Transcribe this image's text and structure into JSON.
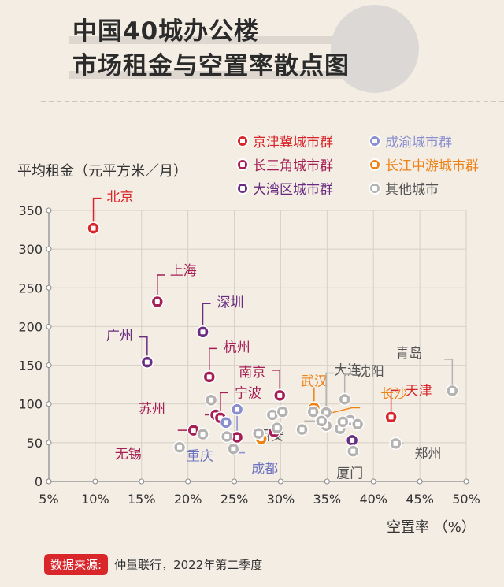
{
  "title": [
    "中国40城办公楼",
    "市场租金与空置率散点图"
  ],
  "source": {
    "tag": "数据来源:",
    "text": "仲量联行，2022年第二季度"
  },
  "chart_data": {
    "type": "scatter",
    "ylabel": "平均租金（元平方米／月）",
    "xlabel": "空置率 （%）",
    "xlim": [
      5,
      50
    ],
    "ylim": [
      0,
      350
    ],
    "x_ticks": [
      "5%",
      "10%",
      "15%",
      "20%",
      "25%",
      "30%",
      "35%",
      "40%",
      "45%",
      "50%"
    ],
    "y_ticks": [
      "0",
      "50",
      "100",
      "150",
      "200",
      "250",
      "300",
      "350"
    ],
    "grid": true,
    "legend_position": "top-right",
    "groups": [
      {
        "key": "jjj",
        "name": "京津冀城市群",
        "color": "#d8262b"
      },
      {
        "key": "cy",
        "name": "成渝城市群",
        "color": "#8a8fcf"
      },
      {
        "key": "csj",
        "name": "长三角城市群",
        "color": "#a51f55"
      },
      {
        "key": "cjzy",
        "name": "长江中游城市群",
        "color": "#ef8217"
      },
      {
        "key": "dwq",
        "name": "大湾区城市群",
        "color": "#6a2c80"
      },
      {
        "key": "other",
        "name": "其他城市",
        "color": "#b5b3b1"
      }
    ],
    "points": [
      {
        "name": "北京",
        "group": "jjj",
        "x": 9.8,
        "y": 327
      },
      {
        "name": "上海",
        "group": "csj",
        "x": 16.7,
        "y": 232
      },
      {
        "name": "深圳",
        "group": "dwq",
        "x": 21.6,
        "y": 193
      },
      {
        "name": "广州",
        "group": "dwq",
        "x": 15.6,
        "y": 154
      },
      {
        "name": "杭州",
        "group": "csj",
        "x": 22.3,
        "y": 135
      },
      {
        "name": "南京",
        "group": "csj",
        "x": 29.9,
        "y": 111
      },
      {
        "name": "苏州",
        "group": "csj",
        "x": 23.0,
        "y": 86
      },
      {
        "name": "宁波",
        "group": "csj",
        "x": 23.5,
        "y": 82
      },
      {
        "name": "无锡",
        "group": "csj",
        "x": 20.6,
        "y": 66
      },
      {
        "name": "",
        "group": "csj",
        "x": 25.3,
        "y": 57
      },
      {
        "name": "",
        "group": "csj",
        "x": 29.3,
        "y": 64
      },
      {
        "name": "天津",
        "group": "jjj",
        "x": 41.9,
        "y": 83
      },
      {
        "name": "成都",
        "group": "cy",
        "x": 25.3,
        "y": 93
      },
      {
        "name": "重庆",
        "group": "cy",
        "x": 24.1,
        "y": 76
      },
      {
        "name": "武汉",
        "group": "cjzy",
        "x": 33.6,
        "y": 95
      },
      {
        "name": "长沙",
        "group": "cjzy",
        "x": 34.3,
        "y": 85
      },
      {
        "name": "",
        "group": "cjzy",
        "x": 27.9,
        "y": 55
      },
      {
        "name": "",
        "group": "dwq",
        "x": 37.7,
        "y": 53
      },
      {
        "name": "",
        "group": "other",
        "x": 22.5,
        "y": 105
      },
      {
        "name": "",
        "group": "other",
        "x": 21.6,
        "y": 61
      },
      {
        "name": "",
        "group": "other",
        "x": 19.1,
        "y": 44
      },
      {
        "name": "",
        "group": "other",
        "x": 24.2,
        "y": 58
      },
      {
        "name": "",
        "group": "other",
        "x": 24.9,
        "y": 42
      },
      {
        "name": "",
        "group": "other",
        "x": 27.6,
        "y": 62
      },
      {
        "name": "",
        "group": "other",
        "x": 29.1,
        "y": 86
      },
      {
        "name": "",
        "group": "other",
        "x": 29.6,
        "y": 69
      },
      {
        "name": "",
        "group": "other",
        "x": 30.2,
        "y": 90
      },
      {
        "name": "",
        "group": "other",
        "x": 32.3,
        "y": 67
      },
      {
        "name": "",
        "group": "other",
        "x": 33.5,
        "y": 90
      },
      {
        "name": "大连",
        "group": "other",
        "x": 34.9,
        "y": 89
      },
      {
        "name": "",
        "group": "other",
        "x": 34.9,
        "y": 72
      },
      {
        "name": "西安",
        "group": "other",
        "x": 34.4,
        "y": 78
      },
      {
        "name": "沈阳",
        "group": "other",
        "x": 36.9,
        "y": 106
      },
      {
        "name": "",
        "group": "other",
        "x": 37.5,
        "y": 79
      },
      {
        "name": "",
        "group": "other",
        "x": 36.4,
        "y": 68
      },
      {
        "name": "",
        "group": "other",
        "x": 36.7,
        "y": 77
      },
      {
        "name": "",
        "group": "other",
        "x": 38.3,
        "y": 74
      },
      {
        "name": "厦门",
        "group": "other",
        "x": 37.8,
        "y": 39
      },
      {
        "name": "郑州",
        "group": "other",
        "x": 42.4,
        "y": 49
      },
      {
        "name": "青岛",
        "group": "other",
        "x": 48.5,
        "y": 117
      }
    ]
  }
}
